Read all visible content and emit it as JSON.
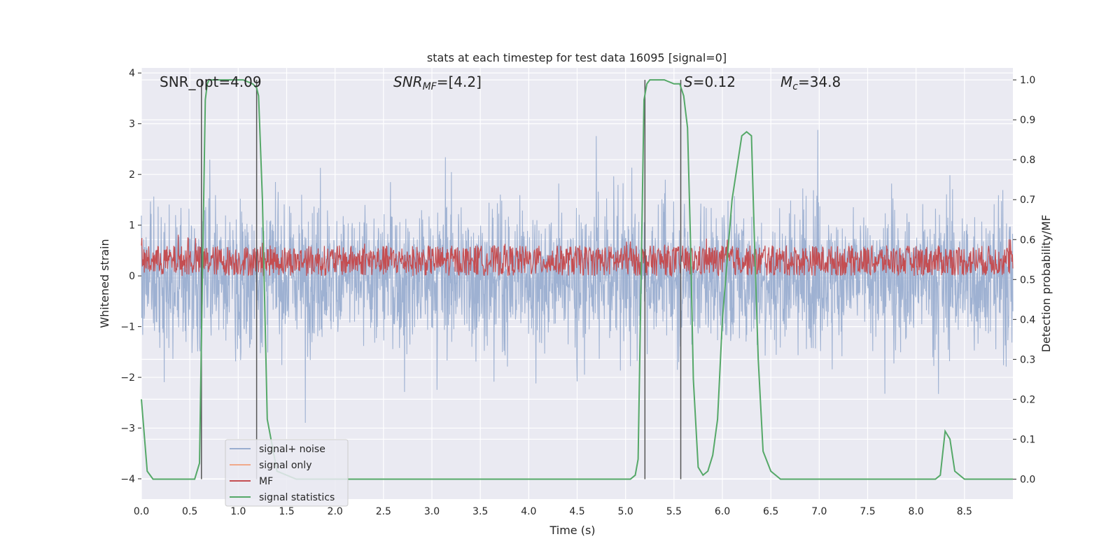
{
  "chart_data": {
    "type": "line",
    "title": "stats at each timestep for test data 16095 [signal=0]",
    "xlabel": "Time (s)",
    "ylabel_left": "Whitened strain",
    "ylabel_right": "Detection probability/MF",
    "xlim": [
      0.0,
      9.0
    ],
    "ylim_left": [
      -4.4,
      4.1
    ],
    "ylim_right": [
      -0.05,
      1.03
    ],
    "xticks": [
      "0.0",
      "0.5",
      "1.0",
      "1.5",
      "2.0",
      "2.5",
      "3.0",
      "3.5",
      "4.0",
      "4.5",
      "5.0",
      "5.5",
      "6.0",
      "6.5",
      "7.0",
      "7.5",
      "8.0",
      "8.5"
    ],
    "yticks_left": [
      "−4",
      "−3",
      "−2",
      "−1",
      "0",
      "1",
      "2",
      "3",
      "4"
    ],
    "yticks_right": [
      "0.0",
      "0.1",
      "0.2",
      "0.3",
      "0.4",
      "0.5",
      "0.6",
      "0.7",
      "0.8",
      "0.9",
      "1.0"
    ],
    "grid": true,
    "legend_position": "lower-left",
    "colors": {
      "background": "#eaeaf2",
      "signal_noise": "#9aaed0",
      "signal_only": "#f0a98a",
      "mf": "#c44e52",
      "signal_statistics": "#55a868",
      "vlines": "#555555"
    },
    "annotations": {
      "snr_opt": "SNR_opt=4.09",
      "snr_mf_main": "SNR",
      "snr_mf_sub": "MF",
      "snr_mf_rest": "=[4.2]",
      "s_main": "S",
      "s_rest": "=0.12",
      "mc_main": "M",
      "mc_sub": "c",
      "mc_rest": "=34.8"
    },
    "series": [
      {
        "name": "signal+ noise",
        "kind": "noise",
        "axis": "left",
        "envelope_hi": 2.0,
        "envelope_lo": -1.9,
        "peak_max": 3.8,
        "peak_min": -4.0
      },
      {
        "name": "signal only",
        "kind": "flat",
        "axis": "left",
        "values": []
      },
      {
        "name": "MF",
        "kind": "noise",
        "axis": "left",
        "center": 0.3,
        "amplitude": 0.3
      },
      {
        "name": "signal statistics",
        "kind": "line",
        "axis": "right",
        "x": [
          0.0,
          0.06,
          0.12,
          0.18,
          0.3,
          0.45,
          0.55,
          0.6,
          0.63,
          0.66,
          0.68,
          0.7,
          0.75,
          0.9,
          1.05,
          1.15,
          1.19,
          1.21,
          1.25,
          1.3,
          1.4,
          1.6,
          2.0,
          3.0,
          4.0,
          5.0,
          5.05,
          5.1,
          5.13,
          5.16,
          5.19,
          5.22,
          5.25,
          5.4,
          5.5,
          5.56,
          5.6,
          5.64,
          5.67,
          5.7,
          5.75,
          5.8,
          5.85,
          5.9,
          5.95,
          6.0,
          6.1,
          6.2,
          6.25,
          6.3,
          6.33,
          6.37,
          6.42,
          6.5,
          6.6,
          7.0,
          8.0,
          8.2,
          8.25,
          8.3,
          8.35,
          8.4,
          8.5,
          9.0
        ],
        "y": [
          0.2,
          0.02,
          0.0,
          0.0,
          0.0,
          0.0,
          0.0,
          0.04,
          0.5,
          0.95,
          0.99,
          1.0,
          1.0,
          1.0,
          1.0,
          0.99,
          0.98,
          0.96,
          0.7,
          0.15,
          0.02,
          0.0,
          0.0,
          0.0,
          0.0,
          0.0,
          0.0,
          0.01,
          0.05,
          0.5,
          0.95,
          0.99,
          1.0,
          1.0,
          0.99,
          0.99,
          0.96,
          0.88,
          0.6,
          0.25,
          0.03,
          0.01,
          0.02,
          0.06,
          0.15,
          0.4,
          0.7,
          0.86,
          0.87,
          0.86,
          0.6,
          0.3,
          0.07,
          0.02,
          0.0,
          0.0,
          0.0,
          0.0,
          0.01,
          0.12,
          0.1,
          0.02,
          0.0,
          0.0
        ]
      }
    ],
    "vlines": [
      0.62,
      1.19,
      5.2,
      5.57
    ],
    "vline_range_right": [
      0.0,
      1.0
    ]
  }
}
